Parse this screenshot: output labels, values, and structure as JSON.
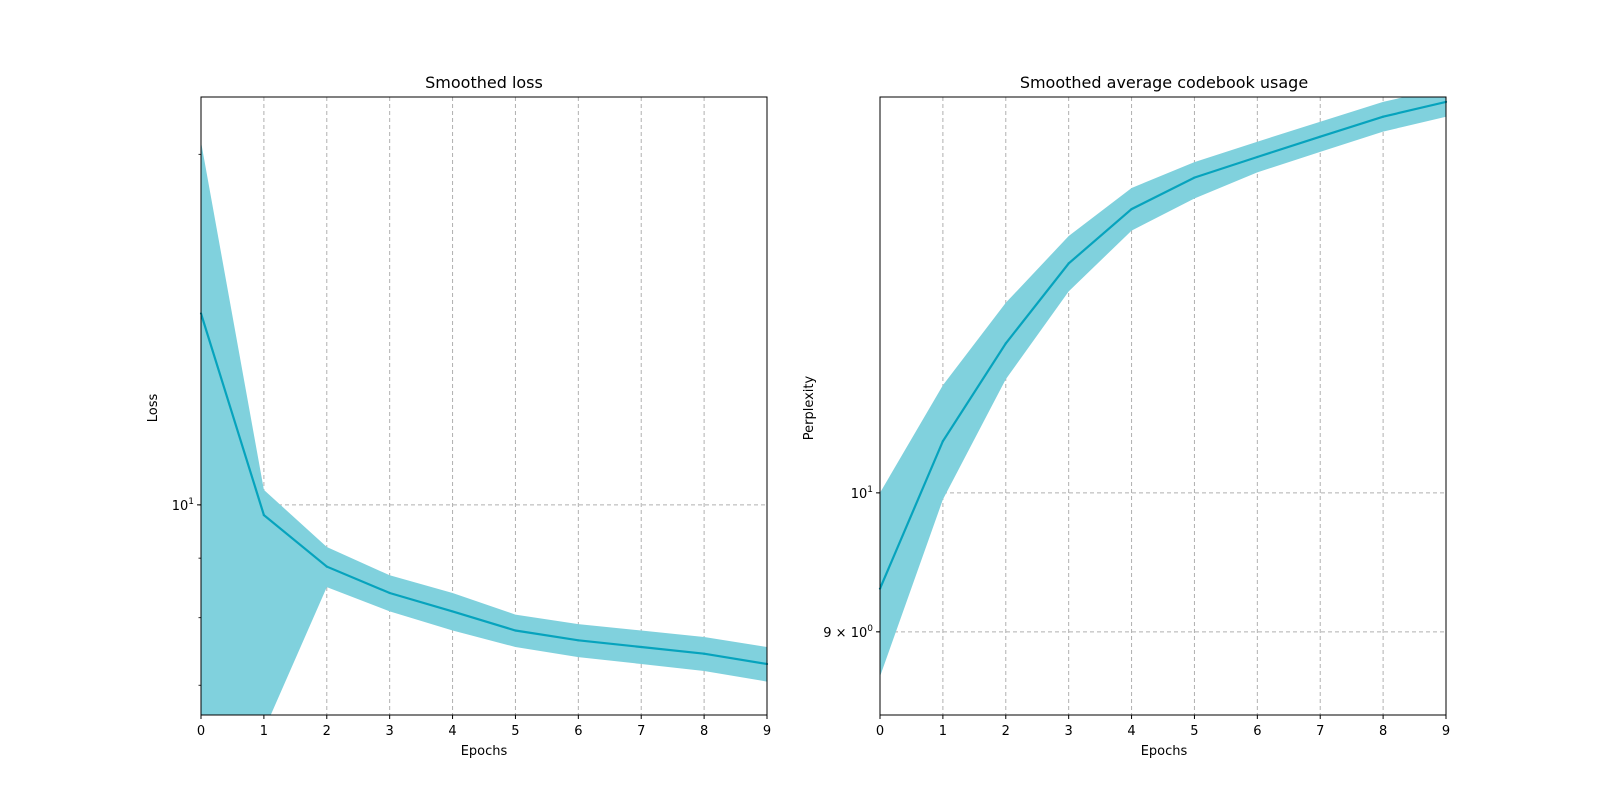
{
  "colors": {
    "line": "#06a3bd",
    "band": "#80d1dd",
    "grid": "#b0b0b0",
    "axis": "#000000",
    "background": "#ffffff"
  },
  "chart_data": [
    {
      "type": "line",
      "title": "Smoothed loss",
      "xlabel": "Epochs",
      "ylabel": "Loss",
      "yscale": "log",
      "xlim": [
        0,
        9
      ],
      "ylim": [
        6.6,
        22.4
      ],
      "grid": true,
      "legend": "none",
      "x_ticks": [
        0,
        1,
        2,
        3,
        4,
        5,
        6,
        7,
        8,
        9
      ],
      "x_tick_labels": [
        "0",
        "1",
        "2",
        "3",
        "4",
        "5",
        "6",
        "7",
        "8",
        "9"
      ],
      "y_ticks": [
        10
      ],
      "y_tick_labels": [
        "10^1"
      ],
      "x": [
        0,
        1,
        2,
        3,
        4,
        5,
        6,
        7,
        8,
        9
      ],
      "series": [
        {
          "values": [
            14.6,
            9.8,
            8.85,
            8.4,
            8.1,
            7.8,
            7.65,
            7.55,
            7.45,
            7.3
          ],
          "band_upper": [
            20.5,
            10.3,
            9.2,
            8.7,
            8.4,
            8.05,
            7.9,
            7.8,
            7.7,
            7.55
          ],
          "band_lower": [
            6.4,
            6.4,
            8.5,
            8.1,
            7.8,
            7.55,
            7.4,
            7.3,
            7.2,
            7.05
          ]
        }
      ]
    },
    {
      "type": "line",
      "title": "Smoothed average codebook usage",
      "xlabel": "Epochs",
      "ylabel": "Perplexity",
      "yscale": "log",
      "xlim": [
        0,
        9
      ],
      "ylim": [
        8.45,
        13.5
      ],
      "grid": true,
      "legend": "none",
      "x_ticks": [
        0,
        1,
        2,
        3,
        4,
        5,
        6,
        7,
        8,
        9
      ],
      "x_tick_labels": [
        "0",
        "1",
        "2",
        "3",
        "4",
        "5",
        "6",
        "7",
        "8",
        "9"
      ],
      "y_ticks": [
        9,
        10
      ],
      "y_tick_labels": [
        "9 × 10^0",
        "10^1"
      ],
      "x": [
        0,
        1,
        2,
        3,
        4,
        5,
        6,
        7,
        8,
        9
      ],
      "series": [
        {
          "values": [
            9.3,
            10.4,
            11.2,
            11.9,
            12.4,
            12.7,
            12.9,
            13.1,
            13.3,
            13.45
          ],
          "band_upper": [
            10.0,
            10.85,
            11.55,
            12.15,
            12.6,
            12.85,
            13.05,
            13.25,
            13.45,
            13.6
          ],
          "band_lower": [
            8.7,
            9.95,
            10.9,
            11.65,
            12.2,
            12.5,
            12.75,
            12.95,
            13.15,
            13.3
          ]
        }
      ]
    }
  ]
}
